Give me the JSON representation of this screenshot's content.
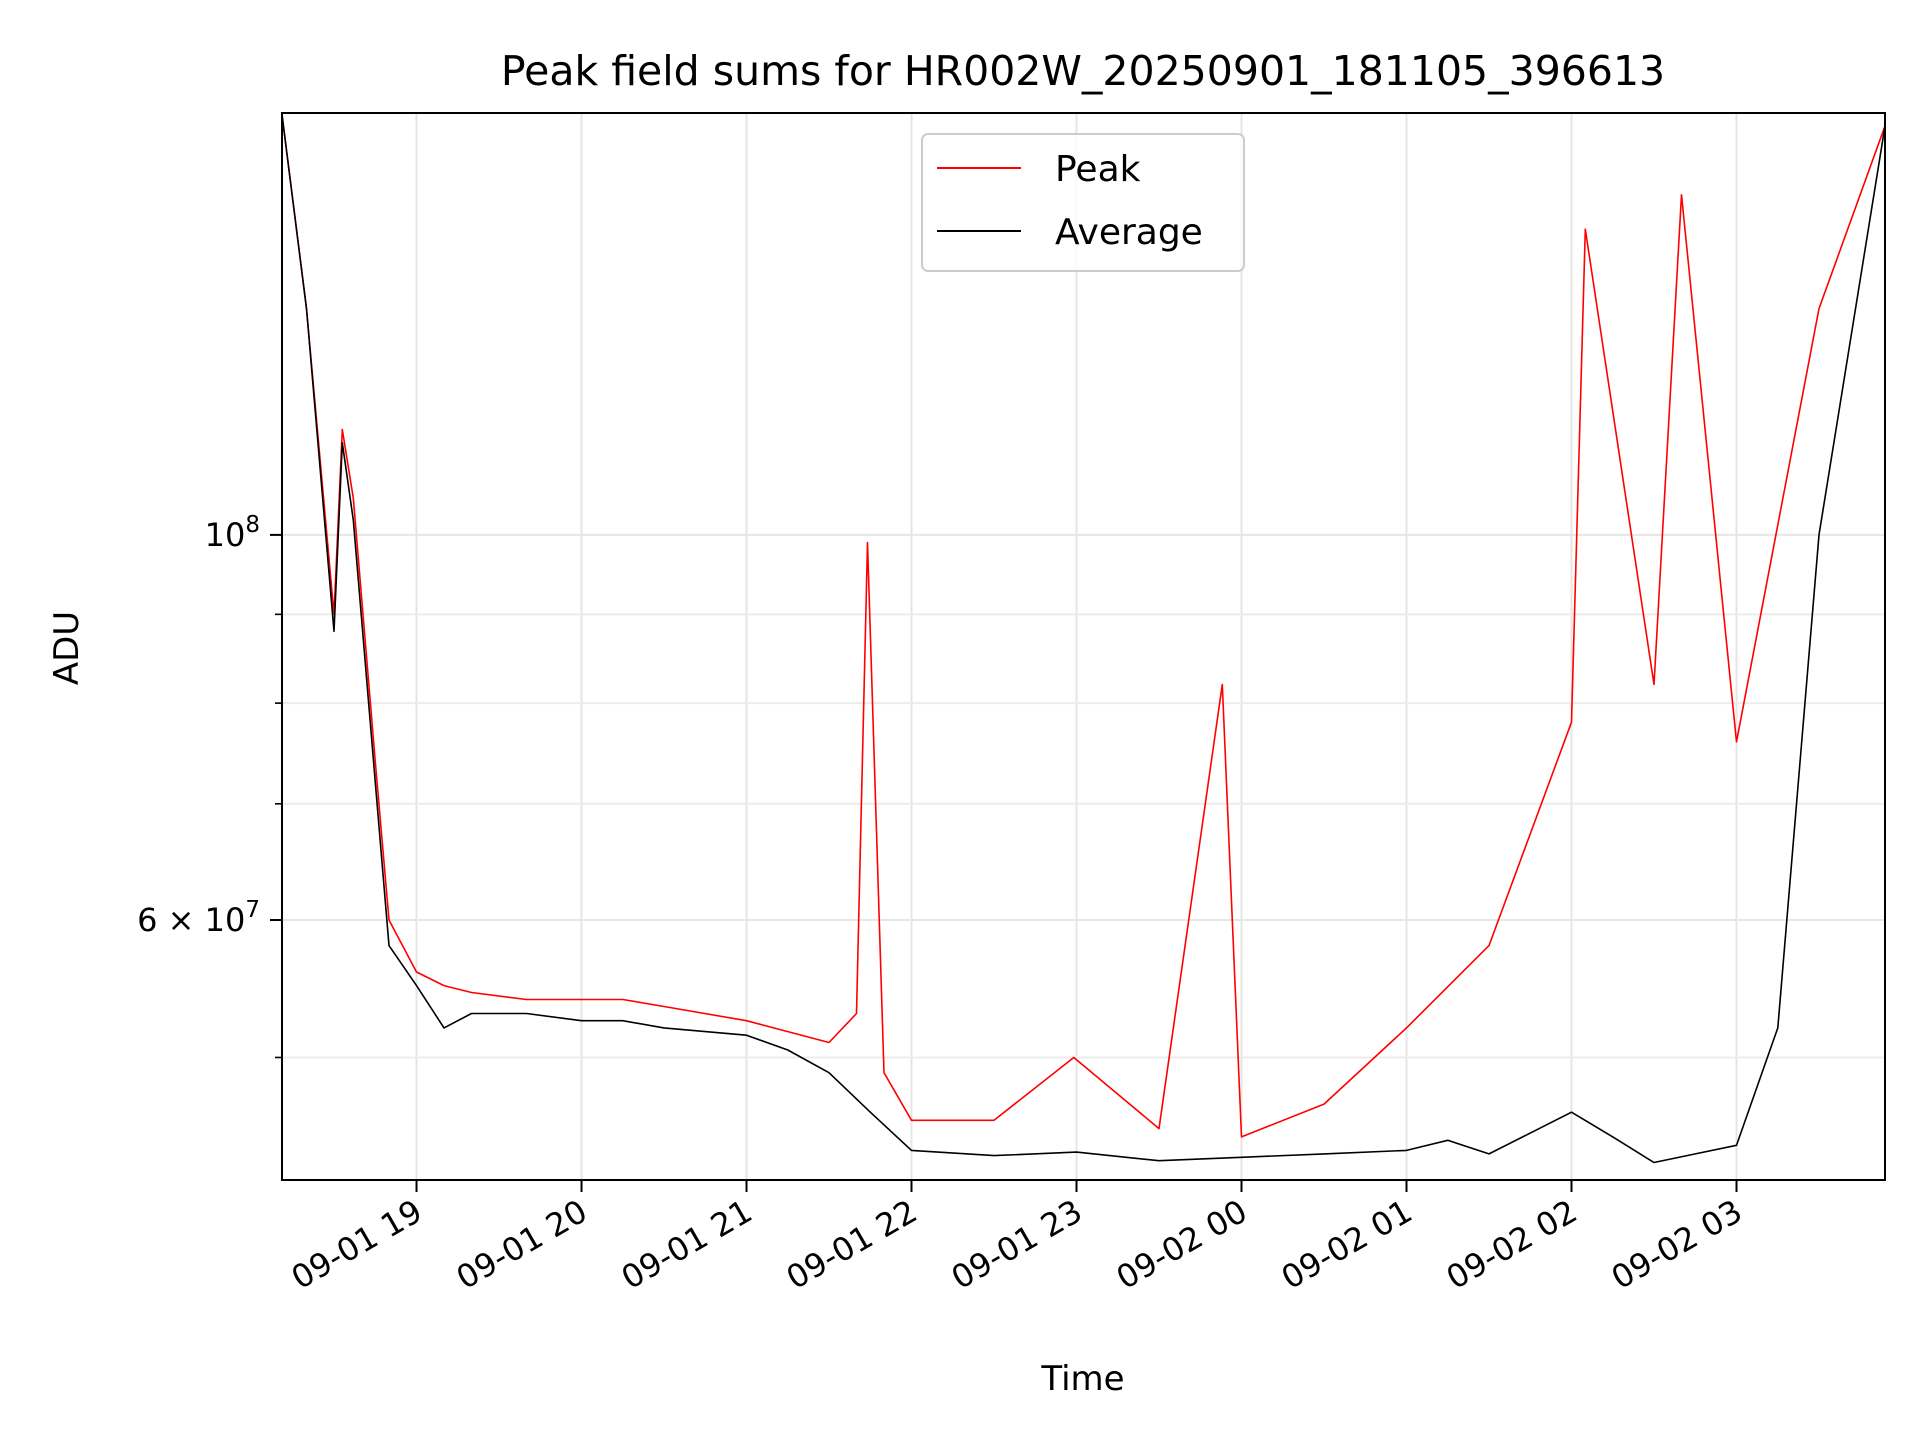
{
  "chart_data": {
    "type": "line",
    "title": "Peak field sums for HR002W_20250901_181105_396613",
    "xlabel": "Time",
    "ylabel": "ADU",
    "x_range": [
      "2025-09-01 18:11:05",
      "2025-09-02 03:54:00"
    ],
    "xticks": [
      "09-01 19",
      "09-01 20",
      "09-01 21",
      "09-01 22",
      "09-01 23",
      "09-02 00",
      "09-02 01",
      "09-02 02",
      "09-02 03"
    ],
    "xtick_values": [
      "2025-09-01 19:00",
      "2025-09-01 20:00",
      "2025-09-01 21:00",
      "2025-09-01 22:00",
      "2025-09-01 23:00",
      "2025-09-02 00:00",
      "2025-09-02 01:00",
      "2025-09-02 02:00",
      "2025-09-02 03:00"
    ],
    "yscale": "log",
    "ylim": [
      42500000,
      175000000
    ],
    "yticks_major": [
      {
        "value": 100000000,
        "base": "10",
        "exp": "8"
      },
      {
        "value": 60000000,
        "base": "6 × 10",
        "exp": "7"
      }
    ],
    "yticks_minor": [
      50000000,
      70000000,
      80000000,
      90000000
    ],
    "grid": true,
    "legend_position": "top-center",
    "series": [
      {
        "name": "Peak",
        "color": "#ff0000",
        "x": [
          "2025-09-01 18:11",
          "2025-09-01 18:20",
          "2025-09-01 18:30",
          "2025-09-01 18:33",
          "2025-09-01 18:37",
          "2025-09-01 18:45",
          "2025-09-01 18:50",
          "2025-09-01 19:00",
          "2025-09-01 19:10",
          "2025-09-01 19:20",
          "2025-09-01 19:40",
          "2025-09-01 20:00",
          "2025-09-01 20:15",
          "2025-09-01 20:30",
          "2025-09-01 21:00",
          "2025-09-01 21:30",
          "2025-09-01 21:40",
          "2025-09-01 21:44",
          "2025-09-01 21:50",
          "2025-09-01 22:00",
          "2025-09-01 22:30",
          "2025-09-01 22:59",
          "2025-09-01 23:30",
          "2025-09-01 23:53",
          "2025-09-02 00:00",
          "2025-09-02 00:30",
          "2025-09-02 01:00",
          "2025-09-02 01:30",
          "2025-09-02 02:00",
          "2025-09-02 02:05",
          "2025-09-02 02:30",
          "2025-09-02 02:40",
          "2025-09-02 03:00",
          "2025-09-02 03:30",
          "2025-09-02 03:54"
        ],
        "values": [
          175000000,
          135000000,
          90000000,
          115000000,
          105000000,
          74000000,
          60000000,
          56000000,
          55000000,
          54500000,
          54000000,
          54000000,
          54000000,
          53500000,
          52500000,
          51000000,
          53000000,
          99000000,
          49000000,
          46000000,
          46000000,
          50000000,
          45500000,
          82000000,
          45000000,
          47000000,
          52000000,
          58000000,
          78000000,
          150000000,
          82000000,
          157000000,
          76000000,
          135000000,
          172000000
        ]
      },
      {
        "name": "Average",
        "color": "#000000",
        "x": [
          "2025-09-01 18:11",
          "2025-09-01 18:20",
          "2025-09-01 18:30",
          "2025-09-01 18:33",
          "2025-09-01 18:37",
          "2025-09-01 18:45",
          "2025-09-01 18:50",
          "2025-09-01 19:00",
          "2025-09-01 19:10",
          "2025-09-01 19:20",
          "2025-09-01 19:40",
          "2025-09-01 20:00",
          "2025-09-01 20:15",
          "2025-09-01 20:30",
          "2025-09-01 21:00",
          "2025-09-01 21:15",
          "2025-09-01 21:30",
          "2025-09-01 21:45",
          "2025-09-01 22:00",
          "2025-09-01 22:30",
          "2025-09-01 23:00",
          "2025-09-01 23:30",
          "2025-09-02 00:00",
          "2025-09-02 00:30",
          "2025-09-02 01:00",
          "2025-09-02 01:15",
          "2025-09-02 01:30",
          "2025-09-02 02:00",
          "2025-09-02 02:15",
          "2025-09-02 02:30",
          "2025-09-02 02:45",
          "2025-09-02 03:00",
          "2025-09-02 03:15",
          "2025-09-02 03:30",
          "2025-09-02 03:54"
        ],
        "values": [
          175000000,
          135000000,
          88000000,
          113000000,
          102000000,
          72000000,
          58000000,
          55000000,
          52000000,
          53000000,
          53000000,
          52500000,
          52500000,
          52000000,
          51500000,
          50500000,
          49000000,
          46500000,
          44200000,
          43900000,
          44100000,
          43600000,
          43800000,
          44000000,
          44200000,
          44800000,
          44000000,
          46500000,
          45000000,
          43500000,
          44000000,
          44500000,
          52000000,
          100000000,
          172000000
        ]
      }
    ]
  }
}
